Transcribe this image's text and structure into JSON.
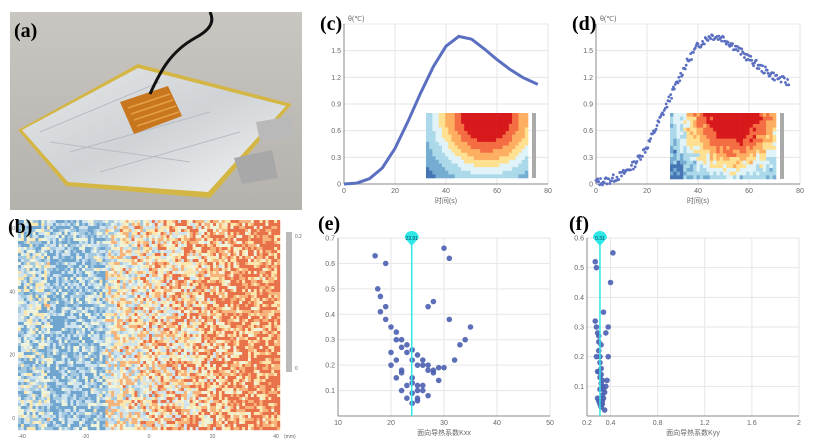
{
  "panels": {
    "a": {
      "label": "(a)"
    },
    "b": {
      "label": "(b)",
      "y_ticks": [
        "60",
        "40",
        "20",
        "0"
      ],
      "x_ticks": [
        "-40",
        "-20",
        "0",
        "20",
        "40"
      ],
      "x_unit": "(mm)",
      "colorbar_ticks": [
        "0.2",
        "0"
      ]
    },
    "c": {
      "label": "(c)"
    },
    "d": {
      "label": "(d)"
    },
    "e": {
      "label": "(e)"
    },
    "f": {
      "label": "(f)"
    }
  },
  "colors": {
    "accent_line": "#5b6fc1",
    "marker": "#2ee8e8",
    "dots": "#4a5fb0",
    "grid": "#e6e6e6"
  },
  "chart_data": [
    {
      "id": "c",
      "type": "line",
      "ylabel": "θ(℃)",
      "xlabel": "时间(s)",
      "xlim": [
        0,
        80
      ],
      "ylim": [
        0,
        1.8
      ],
      "xticks": [
        0,
        20,
        40,
        60,
        80
      ],
      "yticks": [
        0,
        0.3,
        0.6,
        0.9,
        1.2,
        1.5
      ],
      "x": [
        0,
        5,
        10,
        15,
        20,
        25,
        30,
        35,
        40,
        45,
        50,
        55,
        60,
        65,
        70,
        76
      ],
      "y": [
        0.0,
        0.01,
        0.06,
        0.18,
        0.4,
        0.7,
        1.02,
        1.32,
        1.55,
        1.66,
        1.63,
        1.52,
        1.4,
        1.29,
        1.2,
        1.12
      ]
    },
    {
      "id": "d",
      "type": "scatter",
      "ylabel": "θ(℃)",
      "xlabel": "时间(s)",
      "xlim": [
        0,
        80
      ],
      "ylim": [
        0,
        1.8
      ],
      "xticks": [
        0,
        20,
        40,
        60,
        80
      ],
      "yticks": [
        0,
        0.3,
        0.6,
        0.9,
        1.2,
        1.5
      ],
      "x": [
        0,
        5,
        10,
        15,
        20,
        25,
        30,
        35,
        40,
        45,
        50,
        55,
        60,
        65,
        70,
        76
      ],
      "y": [
        0.02,
        0.04,
        0.1,
        0.22,
        0.42,
        0.72,
        1.03,
        1.33,
        1.56,
        1.67,
        1.64,
        1.53,
        1.41,
        1.3,
        1.21,
        1.13
      ]
    },
    {
      "id": "e",
      "type": "scatter",
      "xlabel": "面向导热系数Kxx",
      "ylabel": "",
      "xlim": [
        10,
        50
      ],
      "ylim": [
        0,
        0.7
      ],
      "xticks": [
        10,
        20,
        30,
        40,
        50
      ],
      "yticks": [
        0.1,
        0.2,
        0.3,
        0.4,
        0.5,
        0.6,
        0.7
      ],
      "marker_value": "23.91",
      "marker_x": 23.91,
      "x": [
        17,
        17.5,
        18,
        19,
        20,
        21,
        22,
        23,
        24,
        25,
        26,
        27,
        28,
        29,
        30,
        32,
        34,
        18,
        19,
        21,
        22,
        23,
        24,
        25,
        26,
        27,
        28,
        29,
        31,
        19,
        20,
        22,
        24,
        25,
        26,
        27,
        22,
        23,
        24,
        25,
        20,
        21,
        23,
        24,
        25,
        26,
        28,
        30,
        21,
        22,
        24,
        25,
        27,
        31,
        33,
        35
      ],
      "y": [
        0.63,
        0.5,
        0.47,
        0.43,
        0.35,
        0.3,
        0.27,
        0.25,
        0.22,
        0.2,
        0.2,
        0.18,
        0.18,
        0.19,
        0.19,
        0.22,
        0.3,
        0.41,
        0.38,
        0.33,
        0.3,
        0.28,
        0.26,
        0.24,
        0.22,
        0.2,
        0.17,
        0.14,
        0.38,
        0.6,
        0.25,
        0.17,
        0.15,
        0.12,
        0.1,
        0.08,
        0.1,
        0.07,
        0.05,
        0.06,
        0.2,
        0.15,
        0.12,
        0.09,
        0.07,
        0.12,
        0.45,
        0.66,
        0.22,
        0.18,
        0.13,
        0.1,
        0.43,
        0.62,
        0.28,
        0.35
      ]
    },
    {
      "id": "f",
      "type": "scatter",
      "xlabel": "面向导热系数Kyy",
      "ylabel": "",
      "xlim": [
        0.2,
        2.0
      ],
      "ylim": [
        0,
        0.6
      ],
      "xticks": [
        0.2,
        0.4,
        0.8,
        1.2,
        1.6,
        2.0
      ],
      "yticks": [
        0.1,
        0.2,
        0.3,
        0.4,
        0.5,
        0.6
      ],
      "marker_value": "0.31",
      "marker_x": 0.31,
      "x": [
        0.27,
        0.28,
        0.29,
        0.3,
        0.3,
        0.31,
        0.31,
        0.32,
        0.32,
        0.33,
        0.33,
        0.34,
        0.35,
        0.36,
        0.37,
        0.38,
        0.29,
        0.3,
        0.31,
        0.32,
        0.33,
        0.34,
        0.3,
        0.31,
        0.32,
        0.33,
        0.27,
        0.28,
        0.3,
        0.32,
        0.34,
        0.36,
        0.38,
        0.4,
        0.42,
        0.28,
        0.29,
        0.31,
        0.33,
        0.35
      ],
      "y": [
        0.52,
        0.5,
        0.28,
        0.25,
        0.22,
        0.2,
        0.18,
        0.16,
        0.14,
        0.12,
        0.1,
        0.09,
        0.08,
        0.1,
        0.12,
        0.2,
        0.06,
        0.05,
        0.04,
        0.03,
        0.04,
        0.06,
        0.15,
        0.13,
        0.11,
        0.07,
        0.32,
        0.3,
        0.27,
        0.24,
        0.35,
        0.28,
        0.3,
        0.45,
        0.55,
        0.2,
        0.15,
        0.09,
        0.05,
        0.02
      ]
    }
  ]
}
